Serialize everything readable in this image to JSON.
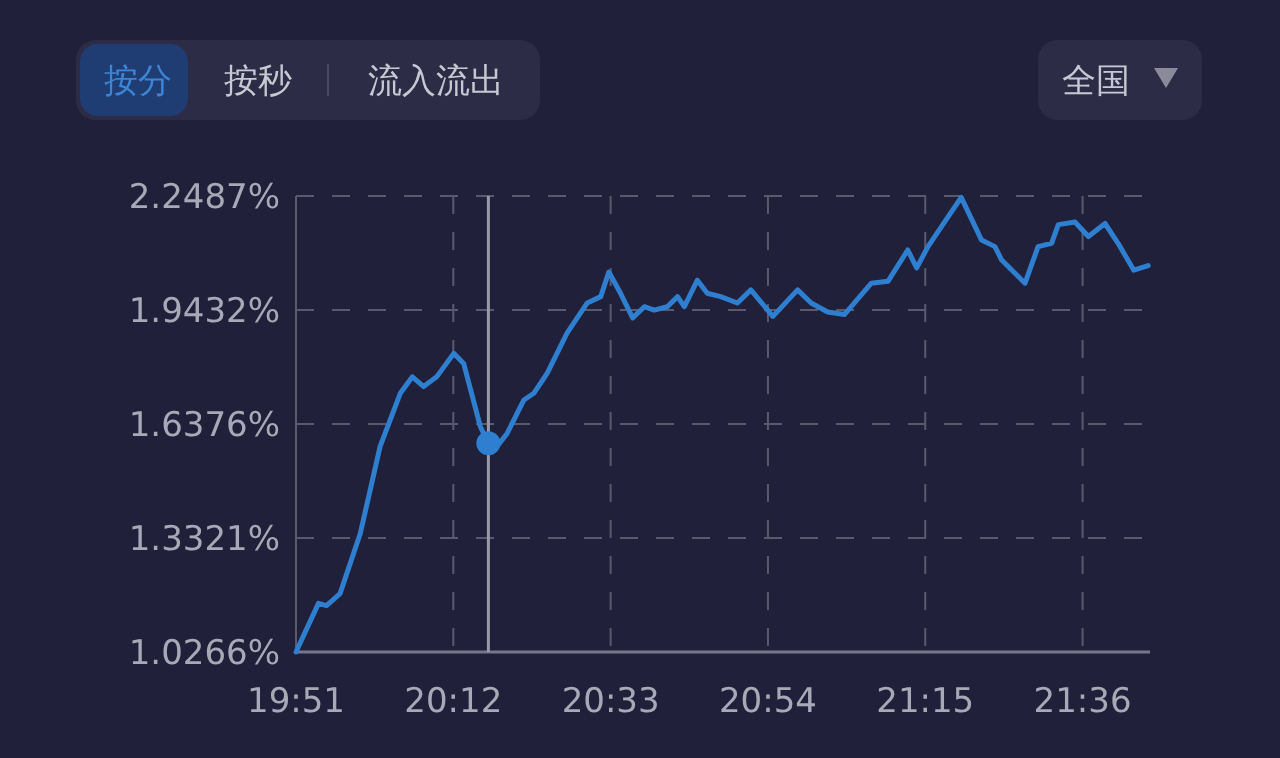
{
  "chart_data": {
    "type": "line",
    "x": [
      19.85,
      19.9,
      19.918,
      19.948,
      19.993,
      20.037,
      20.082,
      20.109,
      20.134,
      20.163,
      20.201,
      20.223,
      20.26,
      20.278,
      20.297,
      20.32,
      20.357,
      20.379,
      20.409,
      20.453,
      20.498,
      20.528,
      20.546,
      20.572,
      20.599,
      20.625,
      20.647,
      20.676,
      20.699,
      20.714,
      20.743,
      20.765,
      20.795,
      20.832,
      20.862,
      20.911,
      20.966,
      20.996,
      21.033,
      21.07,
      21.13,
      21.167,
      21.211,
      21.231,
      21.256,
      21.33,
      21.375,
      21.405,
      21.42,
      21.472,
      21.501,
      21.531,
      21.546,
      21.583,
      21.613,
      21.65,
      21.679,
      21.714,
      21.746
    ],
    "series": [
      {
        "color": "#2f7fd0",
        "values": [
          1.0266,
          1.157,
          1.151,
          1.183,
          1.344,
          1.577,
          1.72,
          1.764,
          1.738,
          1.764,
          1.827,
          1.8,
          1.631,
          1.586,
          1.577,
          1.613,
          1.702,
          1.72,
          1.774,
          1.881,
          1.962,
          1.979,
          2.045,
          1.988,
          1.922,
          1.952,
          1.943,
          1.952,
          1.979,
          1.952,
          2.023,
          1.988,
          1.979,
          1.962,
          1.997,
          1.926,
          1.997,
          1.962,
          1.938,
          1.931,
          2.015,
          2.02,
          2.104,
          2.056,
          2.113,
          2.245,
          2.131,
          2.113,
          2.077,
          2.015,
          2.113,
          2.122,
          2.172,
          2.179,
          2.14,
          2.175,
          2.122,
          2.05,
          2.062
        ]
      },
      {
        "type": "scatter",
        "marker": "circle",
        "color": "#2f7fd0",
        "x": [
          20.278
        ],
        "values": [
          1.586
        ]
      }
    ],
    "xlim": [
      19.85,
      21.75
    ],
    "ylim": [
      1.0266,
      2.2487
    ],
    "xticks": [
      {
        "value": 19.85,
        "label": "19:51"
      },
      {
        "value": 20.2,
        "label": "20:12"
      },
      {
        "value": 20.55,
        "label": "20:33"
      },
      {
        "value": 20.9,
        "label": "20:54"
      },
      {
        "value": 21.25,
        "label": "21:15"
      },
      {
        "value": 21.6,
        "label": "21:36"
      }
    ],
    "yticks": [
      {
        "value": 1.0266,
        "label": "1.0266%"
      },
      {
        "value": 1.3321,
        "label": "1.3321%"
      },
      {
        "value": 1.6376,
        "label": "1.6376%"
      },
      {
        "value": 1.9432,
        "label": "1.9432%"
      },
      {
        "value": 2.2487,
        "label": "2.2487%"
      }
    ],
    "grid": true,
    "marker": "none",
    "line_style": "solid",
    "ref_lines": [
      {
        "axis": "x",
        "value": 20.278,
        "color": "#9a9aa8"
      }
    ],
    "annotations": [
      "按分",
      "按秒",
      "流入流出",
      "全国"
    ]
  }
}
